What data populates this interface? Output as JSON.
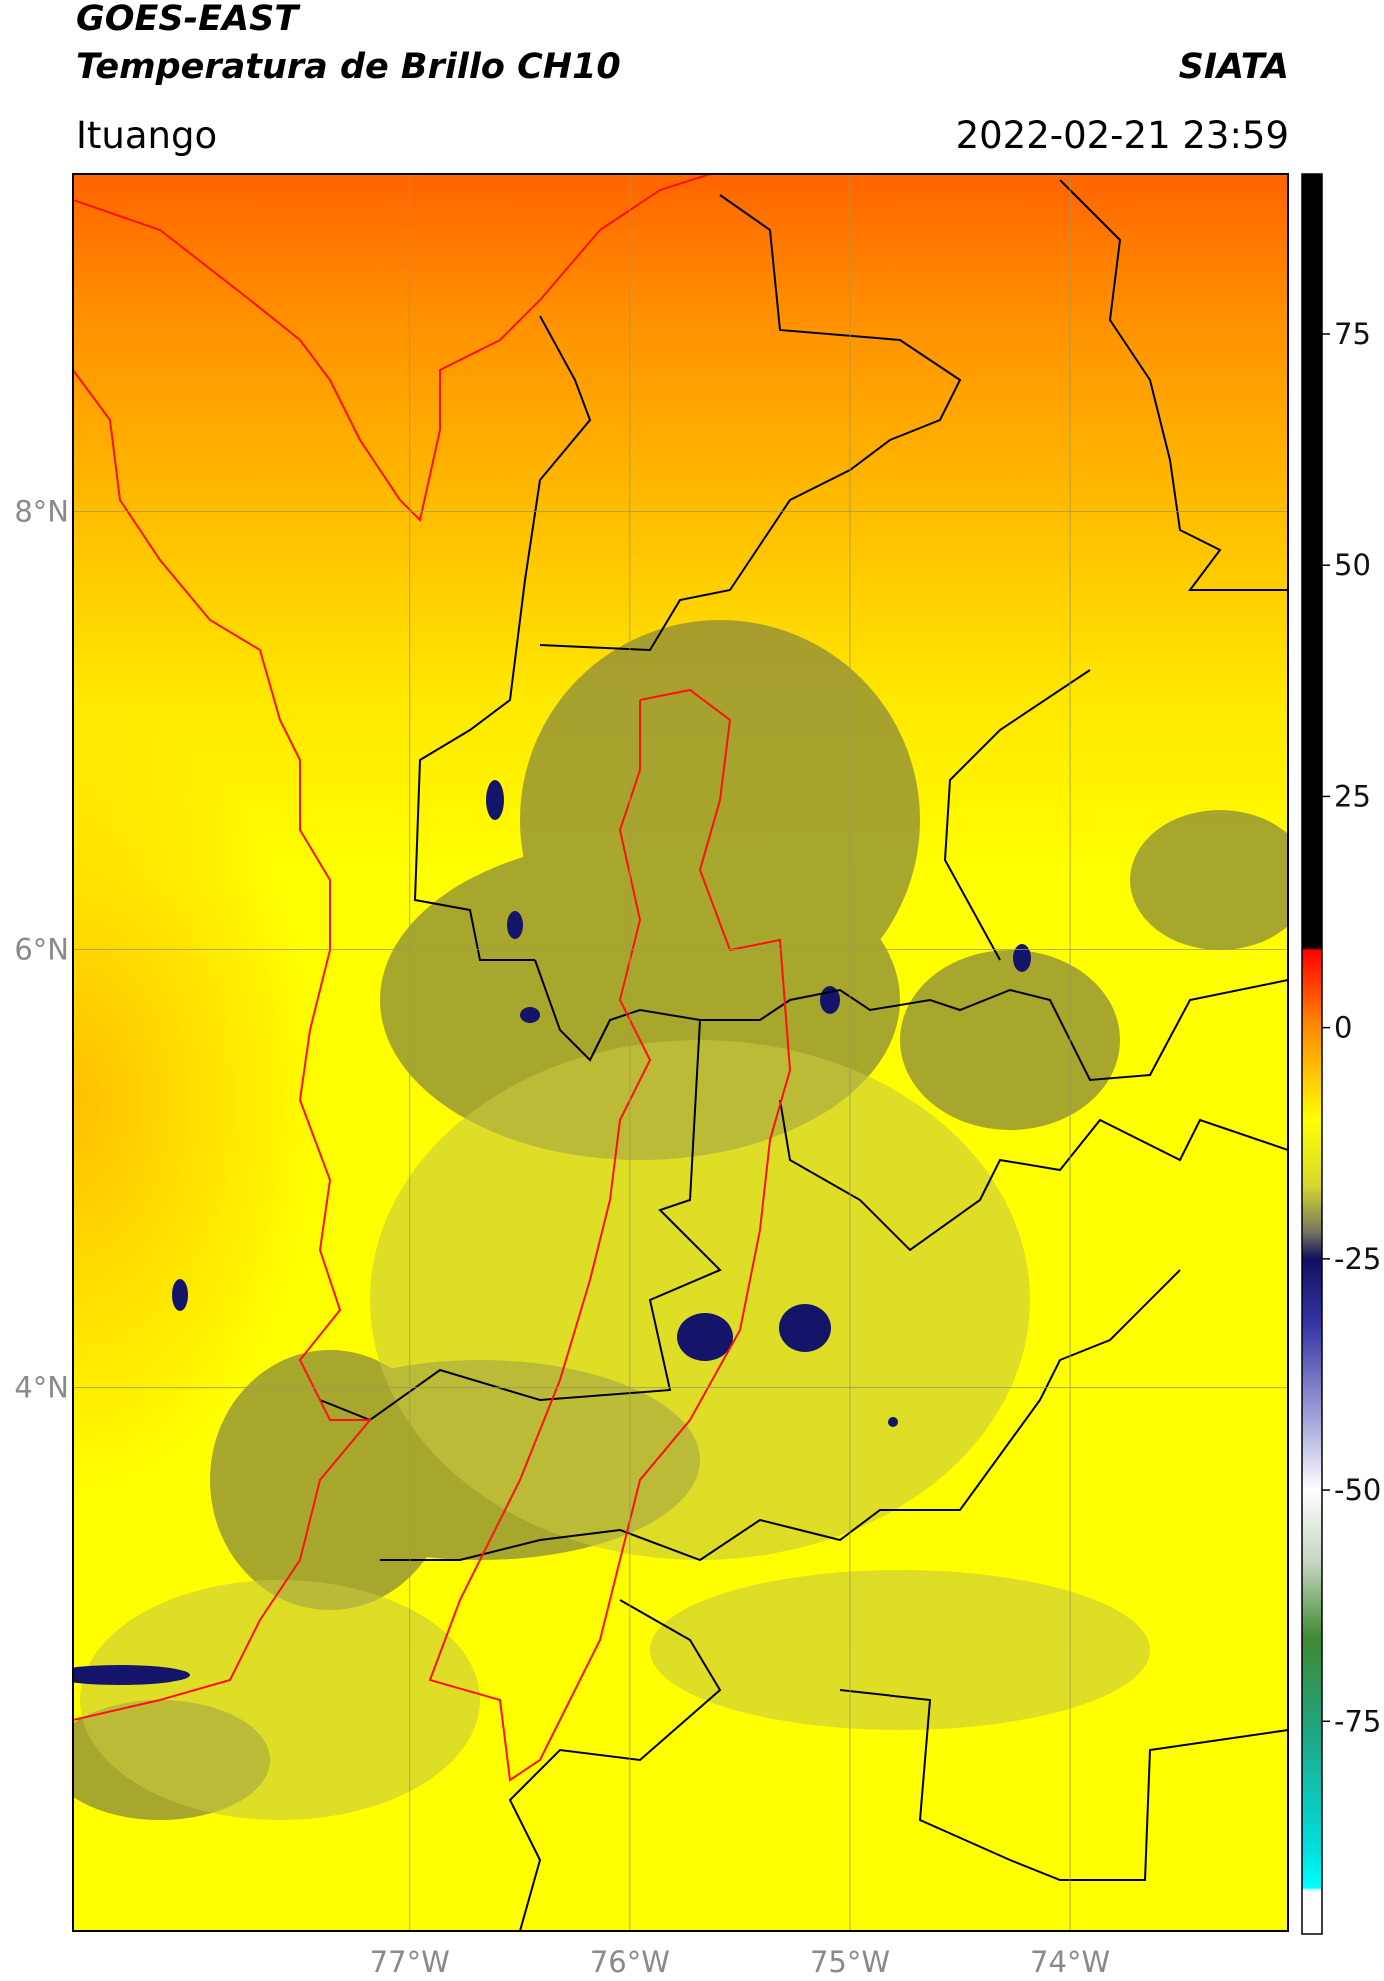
{
  "header": {
    "title": "GOES-EAST",
    "subtitle": "Temperatura de Brillo CH10",
    "brand": "SIATA",
    "location": "Ituango",
    "datetime": "2022-02-21 23:59"
  },
  "map": {
    "xlim": [
      -78.53,
      -73.01
    ],
    "ylim": [
      1.52,
      9.54
    ],
    "xticks": [
      {
        "value": -77,
        "label": "77°W"
      },
      {
        "value": -76,
        "label": "76°W"
      },
      {
        "value": -75,
        "label": "75°W"
      },
      {
        "value": -74,
        "label": "74°W"
      }
    ],
    "yticks": [
      {
        "value": 8,
        "label": "8°N"
      },
      {
        "value": 6,
        "label": "6°N"
      },
      {
        "value": 4,
        "label": "4°N"
      }
    ],
    "grid": true
  },
  "colorbar": {
    "lim": [
      -98,
      92.3
    ],
    "ticks": [
      75,
      50,
      25,
      0,
      -25,
      -50,
      -75
    ],
    "stops": [
      [
        92.3,
        "#000000"
      ],
      [
        8.6,
        "#000000"
      ],
      [
        8.4,
        "#ff0000"
      ],
      [
        0,
        "#ff8c00"
      ],
      [
        -10,
        "#ffff00"
      ],
      [
        -17,
        "#d8d830"
      ],
      [
        -22,
        "#77775c"
      ],
      [
        -25,
        "#10105e"
      ],
      [
        -32,
        "#3535a5"
      ],
      [
        -42,
        "#a0a0d8"
      ],
      [
        -50,
        "#ffffff"
      ],
      [
        -58,
        "#c4d4c0"
      ],
      [
        -66,
        "#3f8a30"
      ],
      [
        -76,
        "#20a585"
      ],
      [
        -89,
        "#00e0e0"
      ],
      [
        -93,
        "#00ffff"
      ],
      [
        -93.3,
        "#ffffff"
      ],
      [
        -98,
        "#ffffff"
      ]
    ]
  }
}
